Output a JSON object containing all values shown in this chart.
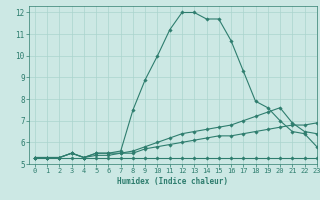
{
  "title": "",
  "xlabel": "Humidex (Indice chaleur)",
  "xlim": [
    -0.5,
    23
  ],
  "ylim": [
    5,
    12.3
  ],
  "xticks": [
    0,
    1,
    2,
    3,
    4,
    5,
    6,
    7,
    8,
    9,
    10,
    11,
    12,
    13,
    14,
    15,
    16,
    17,
    18,
    19,
    20,
    21,
    22,
    23
  ],
  "yticks": [
    5,
    6,
    7,
    8,
    9,
    10,
    11,
    12
  ],
  "bg_color": "#cce8e4",
  "line_color": "#2e7d6e",
  "grid_color": "#aad4ce",
  "lines": [
    {
      "x": [
        0,
        1,
        2,
        3,
        4,
        5,
        6,
        7,
        8,
        9,
        10,
        11,
        12,
        13,
        14,
        15,
        16,
        17,
        18,
        19,
        20,
        21,
        22,
        23
      ],
      "y": [
        5.3,
        5.3,
        5.3,
        5.3,
        5.3,
        5.3,
        5.3,
        5.3,
        5.3,
        5.3,
        5.3,
        5.3,
        5.3,
        5.3,
        5.3,
        5.3,
        5.3,
        5.3,
        5.3,
        5.3,
        5.3,
        5.3,
        5.3,
        5.3
      ]
    },
    {
      "x": [
        0,
        1,
        2,
        3,
        4,
        5,
        6,
        7,
        8,
        9,
        10,
        11,
        12,
        13,
        14,
        15,
        16,
        17,
        18,
        19,
        20,
        21,
        22,
        23
      ],
      "y": [
        5.3,
        5.3,
        5.3,
        5.5,
        5.3,
        5.4,
        5.4,
        5.5,
        5.5,
        5.7,
        5.8,
        5.9,
        6.0,
        6.1,
        6.2,
        6.3,
        6.3,
        6.4,
        6.5,
        6.6,
        6.7,
        6.8,
        6.8,
        6.9
      ]
    },
    {
      "x": [
        0,
        1,
        2,
        3,
        4,
        5,
        6,
        7,
        8,
        9,
        10,
        11,
        12,
        13,
        14,
        15,
        16,
        17,
        18,
        19,
        20,
        21,
        22,
        23
      ],
      "y": [
        5.3,
        5.3,
        5.3,
        5.5,
        5.3,
        5.5,
        5.5,
        5.5,
        5.6,
        5.8,
        6.0,
        6.2,
        6.4,
        6.5,
        6.6,
        6.7,
        6.8,
        7.0,
        7.2,
        7.4,
        7.6,
        6.9,
        6.5,
        6.4
      ]
    },
    {
      "x": [
        0,
        1,
        2,
        3,
        4,
        5,
        6,
        7,
        8,
        9,
        10,
        11,
        12,
        13,
        14,
        15,
        16,
        17,
        18,
        19,
        20,
        21,
        22,
        23
      ],
      "y": [
        5.3,
        5.3,
        5.3,
        5.5,
        5.3,
        5.5,
        5.5,
        5.6,
        7.5,
        8.9,
        10.0,
        11.2,
        12.0,
        12.0,
        11.7,
        11.7,
        10.7,
        9.3,
        7.9,
        7.6,
        7.0,
        6.5,
        6.4,
        5.8
      ]
    }
  ]
}
